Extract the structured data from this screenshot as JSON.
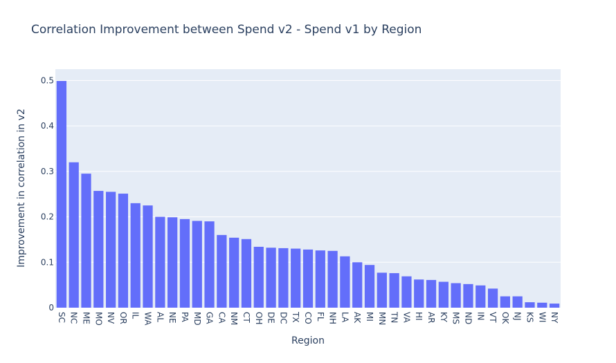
{
  "chart_data": {
    "type": "bar",
    "title": "Correlation Improvement between Spend v2 - Spend v1 by Region",
    "xlabel": "Region",
    "ylabel": "Improvement in correlation in v2",
    "categories": [
      "SC",
      "NC",
      "ME",
      "MO",
      "NV",
      "OR",
      "IL",
      "WA",
      "AL",
      "NE",
      "PA",
      "MD",
      "GA",
      "CA",
      "NM",
      "CT",
      "OH",
      "DE",
      "DC",
      "TX",
      "CO",
      "FL",
      "NH",
      "LA",
      "AK",
      "MI",
      "MN",
      "TN",
      "VA",
      "HI",
      "AR",
      "KY",
      "MS",
      "ND",
      "IN",
      "VT",
      "OK",
      "NJ",
      "KS",
      "WI",
      "NY"
    ],
    "values": [
      0.499,
      0.32,
      0.295,
      0.257,
      0.255,
      0.251,
      0.23,
      0.225,
      0.2,
      0.199,
      0.195,
      0.191,
      0.19,
      0.16,
      0.154,
      0.151,
      0.134,
      0.132,
      0.131,
      0.13,
      0.128,
      0.126,
      0.125,
      0.113,
      0.1,
      0.094,
      0.077,
      0.076,
      0.069,
      0.062,
      0.061,
      0.057,
      0.054,
      0.052,
      0.049,
      0.042,
      0.025,
      0.025,
      0.012,
      0.011,
      0.009
    ],
    "ylim": [
      0,
      0.525
    ],
    "yticks": [
      "0",
      "0.1",
      "0.2",
      "0.3",
      "0.4",
      "0.5"
    ],
    "grid": true,
    "colors": {
      "bar": "#636efa",
      "plot_bg": "#e5ecf6",
      "grid": "#ffffff",
      "text": "#2a3f5f"
    }
  }
}
